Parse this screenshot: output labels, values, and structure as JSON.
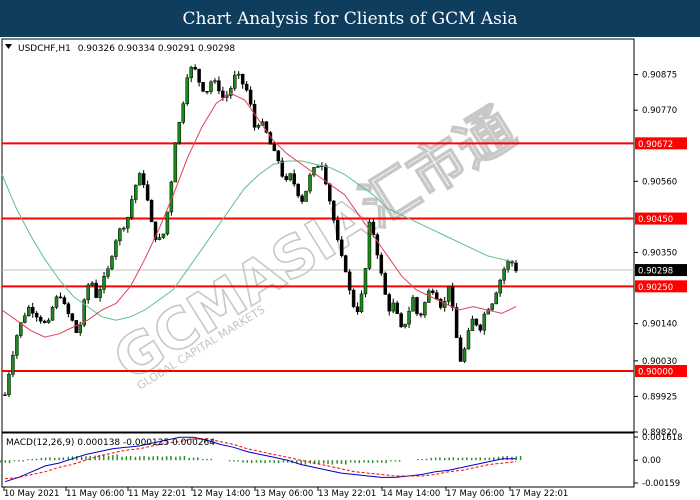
{
  "banner_title": "Chart Analysis for Clients of GCM Asia",
  "watermark": {
    "main": "GCMASIA汇市通",
    "sub": "GLOBAL CAPITAL MARKETS"
  },
  "colors": {
    "banner": "#0f3d5e",
    "level": "#ff0000",
    "ma_fast": "#e0405a",
    "ma_slow": "#5cc08a",
    "candle": "#1a8a1a",
    "macd_line": "#0000c8",
    "signal": "#ff0000",
    "hist": "#2e8b2e"
  },
  "chart_data": {
    "type": "line",
    "instrument": "USDCHF,H1",
    "ohlc_text": "0.90326 0.90334 0.90291 0.90298",
    "current_price": "0.90298",
    "y_ticks": [
      "0.90875",
      "0.90770",
      "0.90560",
      "0.90350",
      "0.90140",
      "0.90030",
      "0.89925",
      "0.89820"
    ],
    "ylim": [
      0.8982,
      0.9098
    ],
    "x_labels": [
      "10 May 2021",
      "11 May 06:00",
      "11 May 22:01",
      "12 May 14:00",
      "13 May 06:00",
      "13 May 22:01",
      "14 May 14:00",
      "17 May 06:00",
      "17 May 22:01"
    ],
    "levels": [
      {
        "label": "0.90672",
        "value": 0.90672
      },
      {
        "label": "0.90450",
        "value": 0.9045
      },
      {
        "label": "0.90250",
        "value": 0.9025
      },
      {
        "label": "0.90000",
        "value": 0.9
      }
    ],
    "price_path": [
      0.8993,
      0.9003,
      0.9011,
      0.9016,
      0.9019,
      0.9017,
      0.9015,
      0.9013,
      0.902,
      0.9023,
      0.9018,
      0.9015,
      0.901,
      0.902,
      0.9028,
      0.9022,
      0.9026,
      0.903,
      0.9038,
      0.9042,
      0.9044,
      0.9052,
      0.9058,
      0.9055,
      0.9044,
      0.9038,
      0.904,
      0.905,
      0.9068,
      0.9076,
      0.9088,
      0.909,
      0.9085,
      0.9082,
      0.9086,
      0.9084,
      0.908,
      0.9083,
      0.9088,
      0.9085,
      0.9082,
      0.9072,
      0.9074,
      0.907,
      0.9065,
      0.9062,
      0.9055,
      0.9058,
      0.9053,
      0.905,
      0.9057,
      0.906,
      0.9062,
      0.9054,
      0.9045,
      0.9035,
      0.903,
      0.902,
      0.9018,
      0.9025,
      0.9045,
      0.9037,
      0.9027,
      0.9018,
      0.902,
      0.9012,
      0.9015,
      0.9022,
      0.9015,
      0.902,
      0.9025,
      0.9022,
      0.9018,
      0.9026,
      0.9012,
      0.9002,
      0.901,
      0.9016,
      0.9012,
      0.9018,
      0.902,
      0.9025,
      0.903,
      0.9033,
      0.903
    ],
    "ma_fast": [
      0.9018,
      0.9015,
      0.9012,
      0.901,
      0.9011,
      0.9013,
      0.9015,
      0.9018,
      0.902,
      0.9025,
      0.9033,
      0.9042,
      0.9052,
      0.9063,
      0.9072,
      0.9079,
      0.9082,
      0.908,
      0.9074,
      0.9068,
      0.9064,
      0.9061,
      0.9058,
      0.9055,
      0.9052,
      0.9046,
      0.904,
      0.9034,
      0.9028,
      0.9024,
      0.9022,
      0.902,
      0.9018,
      0.9019,
      0.9018,
      0.9017,
      0.9019
    ],
    "ma_slow": [
      0.9058,
      0.9048,
      0.904,
      0.9033,
      0.9027,
      0.9022,
      0.9019,
      0.9016,
      0.9015,
      0.9016,
      0.9018,
      0.9021,
      0.9024,
      0.903,
      0.9036,
      0.9042,
      0.9048,
      0.9054,
      0.9058,
      0.9061,
      0.9062,
      0.9062,
      0.9061,
      0.906,
      0.9058,
      0.9055,
      0.9052,
      0.9048,
      0.9046,
      0.9044,
      0.9042,
      0.904,
      0.9038,
      0.9036,
      0.9034,
      0.9033,
      0.9032
    ],
    "macd": {
      "label": "MACD(12,26,9) 0.000138 -0.000125 0.000264",
      "y_ticks": [
        "0.001618",
        "0.00",
        "-0.00159"
      ],
      "ylim": [
        -0.00159,
        0.001618
      ],
      "macd_line": [
        -0.0015,
        -0.0012,
        -0.0008,
        -0.0004,
        -0.0002,
        0.0001,
        0.0004,
        0.0006,
        0.0008,
        0.0009,
        0.001,
        0.0012,
        0.0014,
        0.0016,
        0.0016,
        0.0014,
        0.0011,
        0.0009,
        0.0006,
        0.0004,
        0.0002,
        0.0,
        -0.0003,
        -0.0005,
        -0.0007,
        -0.0009,
        -0.001,
        -0.0011,
        -0.0012,
        -0.0012,
        -0.0011,
        -0.001,
        -0.0008,
        -0.0007,
        -0.0005,
        -0.0003,
        -0.0001,
        0.0001,
        0.0001
      ],
      "signal_line": [
        -0.0013,
        -0.0012,
        -0.001,
        -0.0008,
        -0.0005,
        -0.0003,
        0.0,
        0.0003,
        0.0005,
        0.0007,
        0.0008,
        0.001,
        0.0012,
        0.0013,
        0.0015,
        0.0015,
        0.0013,
        0.0011,
        0.0008,
        0.0006,
        0.0004,
        0.0002,
        0.0,
        -0.0002,
        -0.0004,
        -0.0006,
        -0.0008,
        -0.0009,
        -0.001,
        -0.0011,
        -0.0011,
        -0.0011,
        -0.001,
        -0.0008,
        -0.0007,
        -0.0005,
        -0.0003,
        -0.0002,
        -0.0001
      ],
      "histogram": [
        -0.0002,
        -0.0001,
        0.0001,
        0.0002,
        0.0002,
        0.0003,
        0.0003,
        0.0004,
        0.0004,
        0.0003,
        0.0003,
        0.0003,
        0.0003,
        0.0003,
        0.0002,
        0.0001,
        0.0,
        -0.0001,
        -0.0002,
        -0.0002,
        -0.0002,
        -0.0002,
        -0.0003,
        -0.0003,
        -0.0003,
        -0.0003,
        -0.0002,
        -0.0002,
        -0.0002,
        -0.0001,
        0.0,
        0.0001,
        0.0002,
        0.0002,
        0.0002,
        0.0002,
        0.0002,
        0.0003,
        0.0003
      ]
    }
  }
}
